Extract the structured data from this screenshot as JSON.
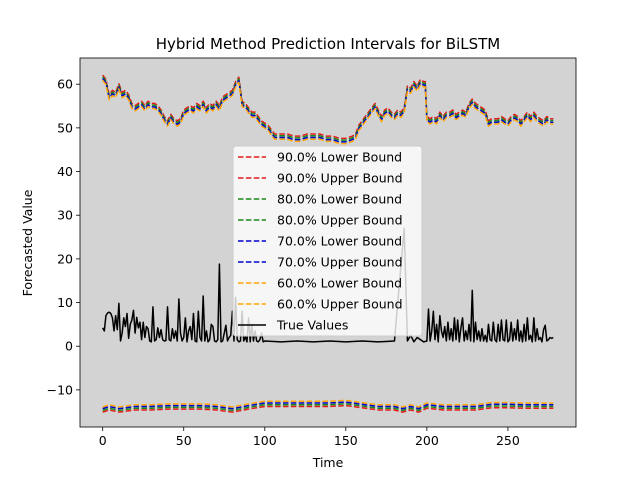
{
  "chart_data": {
    "type": "line",
    "title": "Hybrid Method Prediction Intervals for BiLSTM",
    "xlabel": "Time",
    "ylabel": "Forecasted Value",
    "xlim": [
      -14,
      292
    ],
    "ylim": [
      -18.5,
      66
    ],
    "xticks": [
      0,
      50,
      100,
      150,
      200,
      250
    ],
    "yticks": [
      -10,
      0,
      10,
      20,
      30,
      40,
      50,
      60
    ],
    "xtick_labels": [
      "0",
      "50",
      "100",
      "150",
      "200",
      "250"
    ],
    "ytick_labels": [
      "−10",
      "0",
      "10",
      "20",
      "30",
      "40",
      "50",
      "60"
    ],
    "legend_position": "center",
    "background_color": "#d3d3d3",
    "upper_keypoints": [
      [
        0,
        61.5
      ],
      [
        2,
        60.5
      ],
      [
        4,
        57
      ],
      [
        6,
        58
      ],
      [
        8,
        57.5
      ],
      [
        10,
        59.5
      ],
      [
        12,
        57.5
      ],
      [
        14,
        58
      ],
      [
        16,
        57
      ],
      [
        18,
        55
      ],
      [
        20,
        54.5
      ],
      [
        22,
        55
      ],
      [
        24,
        55.5
      ],
      [
        26,
        54.5
      ],
      [
        28,
        55.5
      ],
      [
        30,
        55
      ],
      [
        32,
        55
      ],
      [
        34,
        54.5
      ],
      [
        36,
        53.5
      ],
      [
        38,
        52
      ],
      [
        40,
        51
      ],
      [
        42,
        52.5
      ],
      [
        44,
        51.5
      ],
      [
        46,
        51
      ],
      [
        48,
        51.5
      ],
      [
        50,
        53.5
      ],
      [
        52,
        54
      ],
      [
        54,
        54.5
      ],
      [
        56,
        54
      ],
      [
        58,
        55
      ],
      [
        60,
        54.5
      ],
      [
        62,
        55.5
      ],
      [
        64,
        54
      ],
      [
        66,
        55
      ],
      [
        68,
        54.5
      ],
      [
        70,
        55.5
      ],
      [
        72,
        54.5
      ],
      [
        74,
        56.5
      ],
      [
        76,
        57
      ],
      [
        78,
        57.5
      ],
      [
        80,
        58
      ],
      [
        82,
        60
      ],
      [
        84,
        61
      ],
      [
        86,
        55.5
      ],
      [
        88,
        55
      ],
      [
        90,
        54
      ],
      [
        92,
        53
      ],
      [
        94,
        53
      ],
      [
        96,
        52
      ],
      [
        98,
        51
      ],
      [
        100,
        50.5
      ],
      [
        102,
        50
      ],
      [
        104,
        49
      ],
      [
        106,
        48
      ],
      [
        110,
        48
      ],
      [
        114,
        48
      ],
      [
        118,
        47.5
      ],
      [
        122,
        47.5
      ],
      [
        126,
        48
      ],
      [
        130,
        48
      ],
      [
        134,
        48
      ],
      [
        138,
        47.5
      ],
      [
        142,
        47.5
      ],
      [
        146,
        47
      ],
      [
        150,
        47
      ],
      [
        154,
        47.5
      ],
      [
        156,
        48
      ],
      [
        158,
        50
      ],
      [
        160,
        51
      ],
      [
        162,
        52
      ],
      [
        164,
        53
      ],
      [
        166,
        54
      ],
      [
        168,
        55
      ],
      [
        170,
        53.5
      ],
      [
        172,
        52
      ],
      [
        174,
        53.5
      ],
      [
        176,
        54
      ],
      [
        178,
        53
      ],
      [
        180,
        52.5
      ],
      [
        182,
        53.5
      ],
      [
        184,
        53
      ],
      [
        186,
        54
      ],
      [
        188,
        59
      ],
      [
        190,
        58.5
      ],
      [
        192,
        60
      ],
      [
        194,
        59
      ],
      [
        196,
        60.5
      ],
      [
        198,
        60
      ],
      [
        199,
        60
      ],
      [
        200,
        52
      ],
      [
        202,
        51.5
      ],
      [
        204,
        52
      ],
      [
        206,
        51.5
      ],
      [
        208,
        53
      ],
      [
        210,
        52
      ],
      [
        212,
        53
      ],
      [
        214,
        53
      ],
      [
        216,
        53.5
      ],
      [
        218,
        52.5
      ],
      [
        220,
        53
      ],
      [
        222,
        53.5
      ],
      [
        224,
        53
      ],
      [
        226,
        55
      ],
      [
        228,
        56
      ],
      [
        230,
        55
      ],
      [
        232,
        54.5
      ],
      [
        234,
        54
      ],
      [
        236,
        53.5
      ],
      [
        238,
        51
      ],
      [
        240,
        51.5
      ],
      [
        242,
        51.5
      ],
      [
        244,
        51.5
      ],
      [
        246,
        52
      ],
      [
        248,
        51.5
      ],
      [
        250,
        51
      ],
      [
        252,
        52
      ],
      [
        254,
        52.5
      ],
      [
        256,
        52
      ],
      [
        258,
        51
      ],
      [
        260,
        52
      ],
      [
        262,
        53
      ],
      [
        264,
        52
      ],
      [
        266,
        53
      ],
      [
        268,
        52
      ],
      [
        270,
        51.5
      ],
      [
        272,
        51
      ],
      [
        274,
        52
      ],
      [
        276,
        51.5
      ],
      [
        278,
        51.5
      ]
    ],
    "lower_keypoints": [
      [
        0,
        -14.5
      ],
      [
        4,
        -14
      ],
      [
        10,
        -14.5
      ],
      [
        20,
        -14
      ],
      [
        30,
        -14
      ],
      [
        40,
        -13.8
      ],
      [
        50,
        -13.8
      ],
      [
        60,
        -13.8
      ],
      [
        70,
        -14
      ],
      [
        80,
        -14.5
      ],
      [
        90,
        -13.8
      ],
      [
        100,
        -13.2
      ],
      [
        110,
        -13.2
      ],
      [
        120,
        -13.2
      ],
      [
        130,
        -13.2
      ],
      [
        140,
        -13.2
      ],
      [
        150,
        -13
      ],
      [
        160,
        -13.5
      ],
      [
        170,
        -14
      ],
      [
        180,
        -14
      ],
      [
        185,
        -14.5
      ],
      [
        190,
        -14
      ],
      [
        195,
        -14.5
      ],
      [
        200,
        -13.6
      ],
      [
        210,
        -14
      ],
      [
        220,
        -14
      ],
      [
        230,
        -14
      ],
      [
        240,
        -13.5
      ],
      [
        250,
        -13.5
      ],
      [
        260,
        -13.6
      ],
      [
        270,
        -13.6
      ],
      [
        278,
        -13.6
      ]
    ],
    "true_values_keypoints": [
      [
        0,
        4.2
      ],
      [
        1,
        3.5
      ],
      [
        2,
        7
      ],
      [
        3,
        7.6
      ],
      [
        4,
        7.8
      ],
      [
        5,
        7.5
      ],
      [
        6,
        6.5
      ],
      [
        7,
        3.5
      ],
      [
        8,
        7
      ],
      [
        9,
        3.8
      ],
      [
        10,
        9.8
      ],
      [
        11,
        1.2
      ],
      [
        12,
        3
      ],
      [
        13,
        6.5
      ],
      [
        14,
        4.5
      ],
      [
        15,
        7.5
      ],
      [
        16,
        1.8
      ],
      [
        17,
        5
      ],
      [
        18,
        6
      ],
      [
        19,
        8.2
      ],
      [
        20,
        3
      ],
      [
        21,
        6.6
      ],
      [
        22,
        4.2
      ],
      [
        23,
        5.5
      ],
      [
        24,
        1.5
      ],
      [
        25,
        5.5
      ],
      [
        26,
        2
      ],
      [
        27,
        4.5
      ],
      [
        28,
        4
      ],
      [
        29,
        1.2
      ],
      [
        30,
        1
      ],
      [
        31,
        9
      ],
      [
        32,
        1.2
      ],
      [
        33,
        1.5
      ],
      [
        34,
        4.2
      ],
      [
        35,
        2
      ],
      [
        36,
        3.8
      ],
      [
        37,
        1.5
      ],
      [
        38,
        1.2
      ],
      [
        39,
        1.3
      ],
      [
        40,
        9
      ],
      [
        41,
        1.5
      ],
      [
        42,
        1.2
      ],
      [
        43,
        4
      ],
      [
        44,
        1.8
      ],
      [
        45,
        3.5
      ],
      [
        46,
        1.2
      ],
      [
        47,
        10.8
      ],
      [
        48,
        3
      ],
      [
        49,
        1.2
      ],
      [
        50,
        2
      ],
      [
        51,
        6.5
      ],
      [
        52,
        1
      ],
      [
        53,
        3.5
      ],
      [
        54,
        4.5
      ],
      [
        55,
        1.5
      ],
      [
        56,
        7.5
      ],
      [
        57,
        1.2
      ],
      [
        58,
        1
      ],
      [
        59,
        8
      ],
      [
        60,
        2
      ],
      [
        61,
        1.2
      ],
      [
        62,
        11.5
      ],
      [
        63,
        1.2
      ],
      [
        64,
        3.5
      ],
      [
        65,
        1
      ],
      [
        66,
        1.5
      ],
      [
        67,
        5
      ],
      [
        68,
        4.5
      ],
      [
        69,
        1.2
      ],
      [
        70,
        1
      ],
      [
        71,
        1.5
      ],
      [
        72,
        18.8
      ],
      [
        73,
        1
      ],
      [
        74,
        1.2
      ],
      [
        75,
        3
      ],
      [
        76,
        4.8
      ],
      [
        77,
        1.2
      ],
      [
        78,
        2
      ],
      [
        79,
        2.5
      ],
      [
        80,
        8
      ],
      [
        81,
        1.2
      ],
      [
        82,
        11.2
      ],
      [
        83,
        1.5
      ],
      [
        84,
        1
      ],
      [
        85,
        1.2
      ],
      [
        86,
        8
      ],
      [
        87,
        1.2
      ],
      [
        88,
        2.2
      ],
      [
        89,
        1
      ],
      [
        90,
        6.5
      ],
      [
        91,
        1
      ],
      [
        92,
        5
      ],
      [
        93,
        1.2
      ],
      [
        94,
        3.5
      ],
      [
        95,
        1.2
      ],
      [
        96,
        1
      ],
      [
        97,
        1.5
      ],
      [
        98,
        3
      ],
      [
        99,
        1
      ],
      [
        100,
        1.2
      ],
      [
        110,
        1
      ],
      [
        120,
        1.2
      ],
      [
        130,
        1
      ],
      [
        140,
        1.2
      ],
      [
        150,
        1
      ],
      [
        160,
        1.2
      ],
      [
        170,
        1
      ],
      [
        180,
        1.2
      ],
      [
        186,
        27
      ],
      [
        188,
        1.2
      ],
      [
        190,
        2.5
      ],
      [
        192,
        1
      ],
      [
        194,
        2
      ],
      [
        196,
        1.5
      ],
      [
        198,
        1
      ],
      [
        200,
        1.2
      ],
      [
        201,
        8.5
      ],
      [
        202,
        1.2
      ],
      [
        203,
        3.5
      ],
      [
        204,
        8
      ],
      [
        205,
        1.5
      ],
      [
        206,
        5
      ],
      [
        207,
        1
      ],
      [
        208,
        7
      ],
      [
        209,
        3.5
      ],
      [
        210,
        2
      ],
      [
        211,
        4.5
      ],
      [
        212,
        1.2
      ],
      [
        213,
        5.5
      ],
      [
        214,
        1.5
      ],
      [
        215,
        4
      ],
      [
        216,
        1.2
      ],
      [
        217,
        6.5
      ],
      [
        218,
        1.5
      ],
      [
        219,
        6
      ],
      [
        220,
        1
      ],
      [
        221,
        4.2
      ],
      [
        222,
        6.5
      ],
      [
        223,
        1.2
      ],
      [
        224,
        3.5
      ],
      [
        225,
        1.5
      ],
      [
        226,
        5
      ],
      [
        227,
        1.2
      ],
      [
        228,
        12.8
      ],
      [
        229,
        1
      ],
      [
        230,
        5.5
      ],
      [
        231,
        1.5
      ],
      [
        232,
        3.5
      ],
      [
        233,
        1.2
      ],
      [
        234,
        4
      ],
      [
        235,
        1.2
      ],
      [
        236,
        2.5
      ],
      [
        237,
        1
      ],
      [
        238,
        5
      ],
      [
        239,
        1.5
      ],
      [
        240,
        1.2
      ],
      [
        241,
        5.5
      ],
      [
        242,
        1.5
      ],
      [
        243,
        1
      ],
      [
        244,
        5
      ],
      [
        245,
        1.2
      ],
      [
        246,
        6
      ],
      [
        247,
        1.5
      ],
      [
        248,
        1.2
      ],
      [
        249,
        6
      ],
      [
        250,
        1
      ],
      [
        251,
        1.5
      ],
      [
        252,
        5.5
      ],
      [
        253,
        1.2
      ],
      [
        254,
        4
      ],
      [
        255,
        1.5
      ],
      [
        256,
        6
      ],
      [
        257,
        1.2
      ],
      [
        258,
        3.5
      ],
      [
        259,
        1
      ],
      [
        260,
        5
      ],
      [
        261,
        1.2
      ],
      [
        262,
        6.5
      ],
      [
        263,
        1.5
      ],
      [
        264,
        2.5
      ],
      [
        265,
        1
      ],
      [
        266,
        6.5
      ],
      [
        267,
        1.2
      ],
      [
        268,
        4
      ],
      [
        269,
        1.5
      ],
      [
        270,
        2
      ],
      [
        271,
        1
      ],
      [
        272,
        3.8
      ],
      [
        273,
        4.8
      ],
      [
        274,
        1.2
      ],
      [
        275,
        1.5
      ],
      [
        276,
        2
      ],
      [
        277,
        1.8
      ],
      [
        278,
        2
      ]
    ],
    "series": [
      {
        "name": "90.0% Lower Bound",
        "color": "#e41a1c",
        "style": "dashed",
        "band": "lower",
        "offset": -0.6
      },
      {
        "name": "90.0% Upper Bound",
        "color": "#e41a1c",
        "style": "dashed",
        "band": "upper",
        "offset": 0.6
      },
      {
        "name": "80.0% Lower Bound",
        "color": "#1a8a1a",
        "style": "dashed",
        "band": "lower",
        "offset": -0.2
      },
      {
        "name": "80.0% Upper Bound",
        "color": "#1a8a1a",
        "style": "dashed",
        "band": "upper",
        "offset": 0.2
      },
      {
        "name": "70.0% Lower Bound",
        "color": "#0000cc",
        "style": "dashed",
        "band": "lower",
        "offset": 0.2
      },
      {
        "name": "70.0% Upper Bound",
        "color": "#0000cc",
        "style": "dashed",
        "band": "upper",
        "offset": -0.2
      },
      {
        "name": "60.0% Lower Bound",
        "color": "#ffa500",
        "style": "dashed",
        "band": "lower",
        "offset": 0.6
      },
      {
        "name": "60.0% Upper Bound",
        "color": "#ffa500",
        "style": "dashed",
        "band": "upper",
        "offset": -0.6
      },
      {
        "name": "True Values",
        "color": "#000000",
        "style": "solid",
        "band": "true",
        "offset": 0
      }
    ]
  }
}
